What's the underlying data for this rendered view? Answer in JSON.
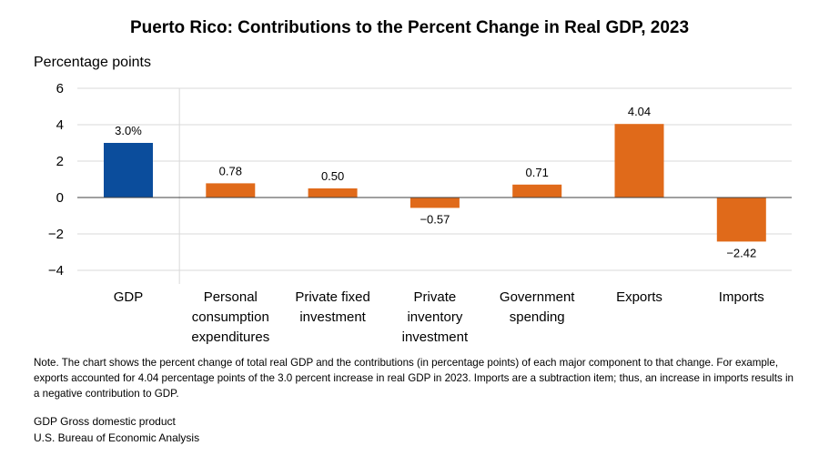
{
  "chart_data": {
    "type": "bar",
    "title": "Puerto Rico: Contributions to the Percent Change in Real GDP, 2023",
    "ylabel": "Percentage points",
    "xlabel": "",
    "ylim": [
      -4,
      6
    ],
    "yticks": [
      6,
      4,
      2,
      0,
      -2,
      -4
    ],
    "ytick_labels": [
      "6",
      "4",
      "2",
      "0",
      "−2",
      "−4"
    ],
    "grid": true,
    "categories": [
      [
        "GDP"
      ],
      [
        "Personal",
        "consumption",
        "expenditures"
      ],
      [
        "Private fixed",
        "investment"
      ],
      [
        "Private",
        "inventory",
        "investment"
      ],
      [
        "Government",
        "spending"
      ],
      [
        "Exports"
      ],
      [
        "Imports"
      ]
    ],
    "values": [
      3.0,
      0.78,
      0.5,
      -0.57,
      0.71,
      4.04,
      -2.42
    ],
    "data_labels": [
      "3.0%",
      "0.78",
      "0.50",
      "−0.57",
      "0.71",
      "4.04",
      "−2.42"
    ],
    "colors": [
      "#0b4d9c",
      "#e06a1a",
      "#e06a1a",
      "#e06a1a",
      "#e06a1a",
      "#e06a1a",
      "#e06a1a"
    ]
  },
  "note": "Note. The chart shows the percent change of total real GDP and the contributions (in percentage points) of each major component to that change. For example, exports accounted for 4.04 percentage points of the 3.0 percent increase in real GDP in 2023. Imports are a subtraction item; thus, an increase in imports results in a negative contribution to GDP.",
  "abbreviation": "GDP Gross domestic product",
  "source": "U.S. Bureau of Economic Analysis"
}
